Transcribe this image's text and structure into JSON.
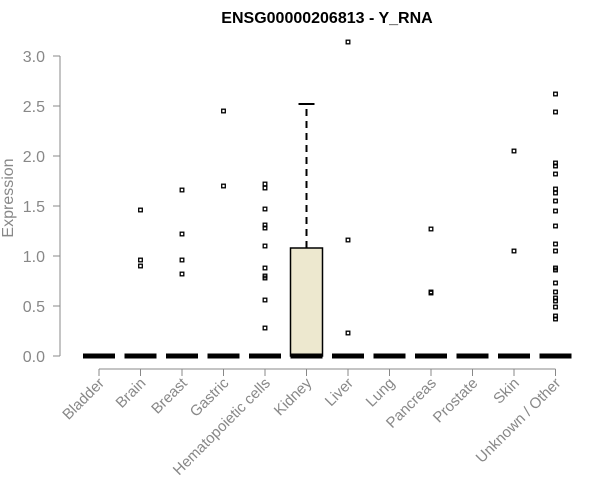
{
  "chart_data": {
    "type": "box",
    "title": "ENSG00000206813 - Y_RNA",
    "xlabel": "",
    "ylabel": "Expression",
    "ylim": [
      0,
      3.0
    ],
    "yticks": [
      "0.0",
      "0.5",
      "1.0",
      "1.5",
      "2.0",
      "2.5",
      "3.0"
    ],
    "box_fill": "#ede8cf",
    "categories": [
      "Bladder",
      "Brain",
      "Breast",
      "Gastric",
      "Hematopoietic cells",
      "Kidney",
      "Liver",
      "Lung",
      "Pancreas",
      "Prostate",
      "Skin",
      "Unknown / Other"
    ],
    "boxes": [
      {
        "category": "Bladder",
        "q1": 0,
        "median": 0,
        "q3": 0,
        "whisker_low": 0,
        "whisker_high": 0,
        "outliers": []
      },
      {
        "category": "Brain",
        "q1": 0,
        "median": 0,
        "q3": 0,
        "whisker_low": 0,
        "whisker_high": 0,
        "outliers": [
          1.46,
          0.96,
          0.9
        ]
      },
      {
        "category": "Breast",
        "q1": 0,
        "median": 0,
        "q3": 0,
        "whisker_low": 0,
        "whisker_high": 0,
        "outliers": [
          1.66,
          1.22,
          0.96,
          0.82
        ]
      },
      {
        "category": "Gastric",
        "q1": 0,
        "median": 0,
        "q3": 0,
        "whisker_low": 0,
        "whisker_high": 0,
        "outliers": [
          2.45,
          1.7
        ]
      },
      {
        "category": "Hematopoietic cells",
        "q1": 0,
        "median": 0,
        "q3": 0,
        "whisker_low": 0,
        "whisker_high": 0,
        "outliers": [
          1.72,
          1.68,
          1.47,
          1.31,
          1.28,
          1.1,
          0.88,
          0.8,
          0.78,
          0.56,
          0.28
        ]
      },
      {
        "category": "Kidney",
        "q1": 0,
        "median": 0,
        "q3": 1.08,
        "whisker_low": 0,
        "whisker_high": 2.52,
        "outliers": []
      },
      {
        "category": "Liver",
        "q1": 0,
        "median": 0,
        "q3": 0,
        "whisker_low": 0,
        "whisker_high": 0,
        "outliers": [
          3.14,
          1.16,
          0.23
        ]
      },
      {
        "category": "Lung",
        "q1": 0,
        "median": 0,
        "q3": 0,
        "whisker_low": 0,
        "whisker_high": 0,
        "outliers": []
      },
      {
        "category": "Pancreas",
        "q1": 0,
        "median": 0,
        "q3": 0,
        "whisker_low": 0,
        "whisker_high": 0,
        "outliers": [
          1.27,
          0.64,
          0.63
        ]
      },
      {
        "category": "Prostate",
        "q1": 0,
        "median": 0,
        "q3": 0,
        "whisker_low": 0,
        "whisker_high": 0,
        "outliers": []
      },
      {
        "category": "Skin",
        "q1": 0,
        "median": 0,
        "q3": 0,
        "whisker_low": 0,
        "whisker_high": 0,
        "outliers": [
          2.05,
          1.05
        ]
      },
      {
        "category": "Unknown / Other",
        "q1": 0,
        "median": 0,
        "q3": 0,
        "whisker_low": 0,
        "whisker_high": 0,
        "outliers": [
          2.62,
          2.44,
          1.93,
          1.9,
          1.82,
          1.67,
          1.63,
          1.55,
          1.45,
          1.3,
          1.12,
          1.05,
          0.88,
          0.86,
          0.73,
          0.64,
          0.58,
          0.55,
          0.49,
          0.4,
          0.37
        ]
      }
    ]
  }
}
